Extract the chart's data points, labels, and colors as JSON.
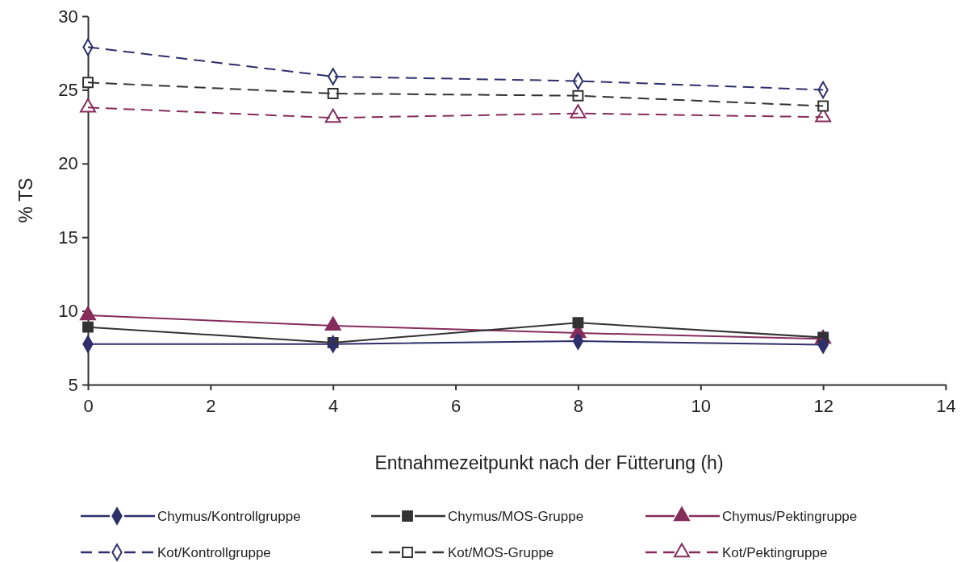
{
  "chart_data": {
    "type": "line",
    "xlabel": "Entnahmezeitpunkt nach der Fütterung (h)",
    "ylabel": "% TS",
    "x": [
      0,
      4,
      8,
      12
    ],
    "xlim": [
      0,
      14
    ],
    "xticks": [
      0,
      2,
      4,
      6,
      8,
      10,
      12,
      14
    ],
    "ylim": [
      5,
      30
    ],
    "yticks": [
      5,
      10,
      15,
      20,
      25,
      30
    ],
    "grid": false,
    "legend": "bottom",
    "series": [
      {
        "name": "Chymus/Kontrollgruppe",
        "color": "#2e2f6b",
        "values": [
          7.75,
          7.75,
          7.95,
          7.7
        ],
        "marker": "diamond",
        "line_style": "solid"
      },
      {
        "name": "Chymus/MOS-Gruppe",
        "color": "#333333",
        "values": [
          8.9,
          7.85,
          9.2,
          8.2
        ],
        "marker": "square",
        "line_style": "solid"
      },
      {
        "name": "Chymus/Pektingruppe",
        "color": "#862d5c",
        "values": [
          9.7,
          9.0,
          8.5,
          8.1
        ],
        "marker": "triangle",
        "line_style": "solid"
      },
      {
        "name": "Kot/Kontrollgruppe",
        "color": "#2e2f6b",
        "values": [
          27.9,
          25.9,
          25.6,
          25.0
        ],
        "marker": "diamond",
        "line_style": "dashed"
      },
      {
        "name": "Kot/MOS-Gruppe",
        "color": "#333333",
        "values": [
          25.5,
          24.75,
          24.6,
          23.9
        ],
        "marker": "square",
        "line_style": "dashed"
      },
      {
        "name": "Kot/Pektingruppe",
        "color": "#862d5c",
        "values": [
          23.8,
          23.1,
          23.4,
          23.15
        ],
        "marker": "triangle",
        "line_style": "dashed"
      }
    ]
  }
}
